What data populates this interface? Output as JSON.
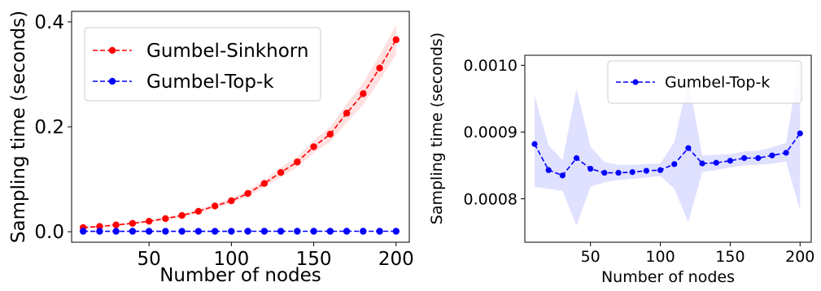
{
  "chart_data": [
    {
      "type": "line",
      "xlabel": "Number of nodes",
      "ylabel": "Sampling time (seconds)",
      "xlim": [
        3,
        208
      ],
      "ylim": [
        -0.02,
        0.42
      ],
      "xticks": [
        50,
        100,
        150,
        200
      ],
      "yticks": [
        0.0,
        0.2,
        0.4
      ],
      "xtick_labels": [
        "50",
        "100",
        "150",
        "200"
      ],
      "ytick_labels": [
        "0.0",
        "0.2",
        "0.4"
      ],
      "legend_position": "top-left",
      "x": [
        10,
        20,
        30,
        40,
        50,
        60,
        70,
        80,
        90,
        100,
        110,
        120,
        130,
        140,
        150,
        160,
        170,
        180,
        190,
        200
      ],
      "series": [
        {
          "name": "Gumbel-Sinkhorn",
          "color": "#ff0000",
          "values": [
            0.008,
            0.01,
            0.013,
            0.016,
            0.02,
            0.025,
            0.031,
            0.039,
            0.049,
            0.059,
            0.073,
            0.092,
            0.113,
            0.133,
            0.162,
            0.186,
            0.226,
            0.263,
            0.312,
            0.366
          ],
          "band_lower": [
            0.006,
            0.008,
            0.011,
            0.014,
            0.018,
            0.022,
            0.028,
            0.035,
            0.045,
            0.054,
            0.067,
            0.085,
            0.104,
            0.123,
            0.15,
            0.172,
            0.208,
            0.242,
            0.288,
            0.338
          ],
          "band_upper": [
            0.01,
            0.012,
            0.015,
            0.018,
            0.022,
            0.028,
            0.034,
            0.043,
            0.053,
            0.064,
            0.079,
            0.099,
            0.122,
            0.143,
            0.174,
            0.2,
            0.244,
            0.284,
            0.336,
            0.394
          ]
        },
        {
          "name": "Gumbel-Top-k",
          "color": "#0000ff",
          "values": [
            0.0009,
            0.0008,
            0.0008,
            0.0009,
            0.0008,
            0.0008,
            0.0008,
            0.0008,
            0.0008,
            0.0008,
            0.0009,
            0.0009,
            0.0009,
            0.0009,
            0.0009,
            0.0009,
            0.0009,
            0.0009,
            0.0009,
            0.0009
          ],
          "band_lower": [
            0.0006,
            0.0006,
            0.0006,
            0.0006,
            0.0006,
            0.0006,
            0.0006,
            0.0006,
            0.0006,
            0.0006,
            0.0006,
            0.0006,
            0.0006,
            0.0006,
            0.0006,
            0.0006,
            0.0006,
            0.0006,
            0.0006,
            0.0006
          ],
          "band_upper": [
            0.0012,
            0.0011,
            0.0011,
            0.0012,
            0.0011,
            0.0011,
            0.0011,
            0.0011,
            0.0011,
            0.0011,
            0.0012,
            0.0012,
            0.0012,
            0.0012,
            0.0012,
            0.0012,
            0.0012,
            0.0012,
            0.0012,
            0.0012
          ]
        }
      ]
    },
    {
      "type": "line",
      "xlabel": "Number of nodes",
      "ylabel": "Sampling time (seconds)",
      "xlim": [
        3,
        208
      ],
      "ylim": [
        0.000735,
        0.001015
      ],
      "xticks": [
        50,
        100,
        150,
        200
      ],
      "yticks": [
        0.0008,
        0.0009,
        0.001
      ],
      "xtick_labels": [
        "50",
        "100",
        "150",
        "200"
      ],
      "ytick_labels": [
        "0.0008",
        "0.0009",
        "0.0010"
      ],
      "legend_position": "top-right",
      "x": [
        10,
        20,
        30,
        40,
        50,
        60,
        70,
        80,
        90,
        100,
        110,
        120,
        130,
        140,
        150,
        160,
        170,
        180,
        190,
        200
      ],
      "series": [
        {
          "name": "Gumbel-Top-k",
          "color": "#0000ff",
          "values": [
            0.000882,
            0.000843,
            0.000835,
            0.000861,
            0.000845,
            0.000839,
            0.000839,
            0.00084,
            0.000842,
            0.000843,
            0.000852,
            0.000876,
            0.000853,
            0.000854,
            0.000857,
            0.000861,
            0.000861,
            0.000865,
            0.000869,
            0.000898
          ],
          "band_lower": [
            0.000818,
            0.000815,
            0.000812,
            0.00076,
            0.000818,
            0.000825,
            0.000828,
            0.00083,
            0.000832,
            0.000834,
            0.000815,
            0.000765,
            0.00084,
            0.000843,
            0.000847,
            0.00085,
            0.000851,
            0.000853,
            0.000856,
            0.000783
          ],
          "band_upper": [
            0.000955,
            0.00088,
            0.000858,
            0.000965,
            0.000878,
            0.000855,
            0.000851,
            0.000851,
            0.000852,
            0.000853,
            0.000885,
            0.00098,
            0.000865,
            0.000866,
            0.000867,
            0.000871,
            0.000872,
            0.000877,
            0.000884,
            0.00101
          ]
        }
      ]
    }
  ]
}
